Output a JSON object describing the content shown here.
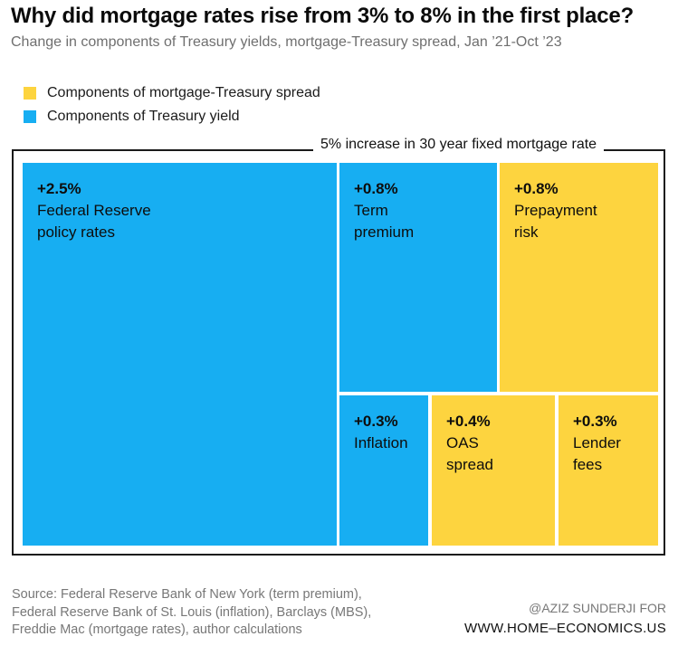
{
  "title": "Why did mortgage rates rise from 3% to 8% in the first place?",
  "subtitle": "Change in components of Treasury yields, mortgage-Treasury spread, Jan ’21-Oct ’23",
  "colors": {
    "spread": "#FDD43F",
    "treasury": "#17AEF2"
  },
  "chart_data": {
    "type": "treemap",
    "title": "Why did mortgage rates rise from 3% to 8% in the first place?",
    "subtitle": "Change in components of Treasury yields, mortgage-Treasury spread, Jan ’21-Oct ’23",
    "total_label": "5% increase in 30 year fixed mortgage rate",
    "total": 5.0,
    "unit": "percentage points",
    "legend": [
      {
        "key": "spread",
        "label": "Components of mortgage-Treasury spread",
        "color": "#FDD43F"
      },
      {
        "key": "treasury",
        "label": "Components of Treasury yield",
        "color": "#17AEF2"
      }
    ],
    "items": [
      {
        "value": 2.5,
        "value_label": "+2.5%",
        "label": "Federal Reserve\npolicy rates",
        "group": "treasury"
      },
      {
        "value": 0.8,
        "value_label": "+0.8%",
        "label": "Term\npremium",
        "group": "treasury"
      },
      {
        "value": 0.8,
        "value_label": "+0.8%",
        "label": "Prepayment\nrisk",
        "group": "spread"
      },
      {
        "value": 0.3,
        "value_label": "+0.3%",
        "label": "Inflation",
        "group": "treasury"
      },
      {
        "value": 0.4,
        "value_label": "+0.4%",
        "label": "OAS\nspread",
        "group": "spread"
      },
      {
        "value": 0.3,
        "value_label": "+0.3%",
        "label": "Lender\nfees",
        "group": "spread"
      }
    ]
  },
  "source": "Source: Federal Reserve Bank of New York (term premium),\nFederal Reserve Bank of St. Louis (inflation), Barclays (MBS),\nFreddie Mac (mortgage rates), author calculations",
  "credit_line1": "@AZIZ SUNDERJI FOR",
  "credit_line2": "WWW.HOME–ECONOMICS.US"
}
